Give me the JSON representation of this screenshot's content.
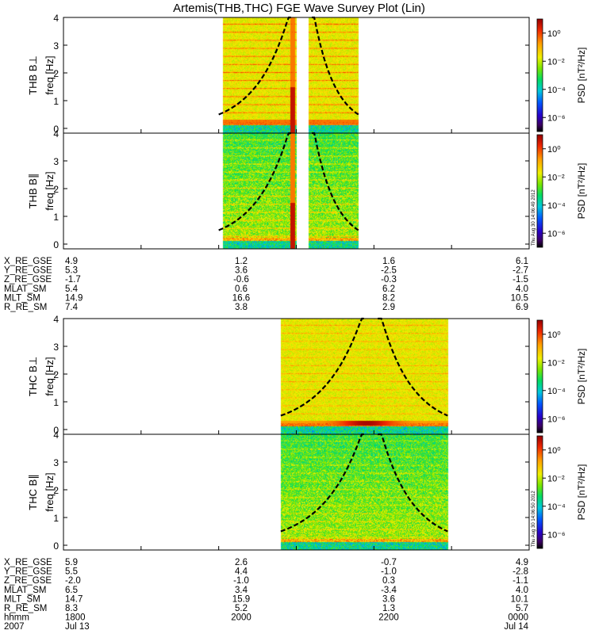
{
  "title": "Artemis(THB,THC) FGE Wave Survey Plot (Lin)",
  "colors": {
    "background": "#ffffff",
    "frame": "#000000",
    "curve": "#000000"
  },
  "colorbar": {
    "label": "PSD [nT²/Hz]",
    "tick_labels": [
      "10⁰",
      "10⁻²",
      "10⁻⁴",
      "10⁻⁶"
    ],
    "tick_exponents": [
      0,
      -2,
      -4,
      -6
    ],
    "exponent_range": [
      -7,
      1
    ],
    "stamps": [
      "Thu Aug 30 14:06:49 2012",
      "Thu Aug 30 14:06:50 2012"
    ]
  },
  "freq_ticks": [
    "0",
    "1",
    "2",
    "3",
    "4"
  ],
  "ephemeris": [
    {
      "rows": [
        {
          "label": "X_RE_GSE",
          "values": [
            "4.9",
            "1.2",
            "1.6",
            "6.1"
          ]
        },
        {
          "label": "Y_RE_GSE",
          "values": [
            "5.3",
            "3.6",
            "-2.5",
            "-2.7"
          ]
        },
        {
          "label": "Z_RE_GSE",
          "values": [
            "-1.7",
            "-0.6",
            "-0.3",
            "-1.5"
          ]
        },
        {
          "label": "MLAT_SM",
          "values": [
            "5.4",
            "0.6",
            "6.2",
            "4.0"
          ]
        },
        {
          "label": "MLT_SM",
          "values": [
            "14.9",
            "16.6",
            "8.2",
            "10.5"
          ]
        },
        {
          "label": "R_RE_SM",
          "values": [
            "7.4",
            "3.8",
            "2.9",
            "6.9"
          ]
        }
      ]
    },
    {
      "rows": [
        {
          "label": "X_RE_GSE",
          "values": [
            "5.9",
            "2.6",
            "-0.7",
            "4.9"
          ]
        },
        {
          "label": "Y_RE_GSE",
          "values": [
            "5.5",
            "4.4",
            "-1.0",
            "-2.8"
          ]
        },
        {
          "label": "Z_RE_GSE",
          "values": [
            "-2.0",
            "-1.0",
            "0.3",
            "-1.1"
          ]
        },
        {
          "label": "MLAT_SM",
          "values": [
            "6.5",
            "3.4",
            "-3.4",
            "4.0"
          ]
        },
        {
          "label": "MLT_SM",
          "values": [
            "14.7",
            "15.9",
            "3.6",
            "10.1"
          ]
        },
        {
          "label": "R_RE_SM",
          "values": [
            "8.3",
            "5.2",
            "1.3",
            "5.7"
          ]
        },
        {
          "label": "hhmm",
          "values": [
            "1800",
            "2000",
            "2200",
            "0000"
          ]
        },
        {
          "label": "2007",
          "values": [
            "Jul 13",
            "",
            "",
            "Jul 14"
          ]
        }
      ]
    }
  ],
  "chart_data": {
    "type": "heatmap",
    "title": "Artemis(THB,THC) FGE Wave Survey Plot (Lin)",
    "x_range_hours": [
      18,
      24
    ],
    "time_ticks": [
      "1800",
      "2000",
      "2200",
      "0000"
    ],
    "date_labels": [
      "Jul 13",
      "Jul 14"
    ],
    "ylim_hz": [
      0,
      4
    ],
    "y_ticks_hz": [
      0,
      1,
      2,
      3,
      4
    ],
    "ylabel": "freq [Hz]",
    "colorbar_label": "PSD [nT²/Hz]",
    "panels": [
      {
        "name": "THB B⊥",
        "probe": "THB",
        "component": "perp",
        "data_spans_hours": [
          [
            20.05,
            21.0
          ],
          [
            21.15,
            21.8
          ]
        ],
        "spike_hour": 20.95,
        "gap_hours": [
          21.0,
          21.15
        ],
        "curve_hours": [
          [
            20.0,
            20.95
          ],
          [
            21.2,
            21.8
          ]
        ]
      },
      {
        "name": "THB B∥",
        "probe": "THB",
        "component": "par",
        "data_spans_hours": [
          [
            20.05,
            21.0
          ],
          [
            21.15,
            21.8
          ]
        ],
        "spike_hour": 20.95,
        "gap_hours": [
          21.0,
          21.15
        ],
        "curve_hours": [
          [
            20.0,
            20.95
          ],
          [
            21.2,
            21.8
          ]
        ]
      },
      {
        "name": "THC B⊥",
        "probe": "THC",
        "component": "perp",
        "data_spans_hours": [
          [
            20.8,
            22.95
          ]
        ],
        "spike_hour": null,
        "gap_hours": null,
        "curve_hours": [
          [
            20.8,
            21.9
          ],
          [
            22.05,
            22.95
          ]
        ]
      },
      {
        "name": "THC B∥",
        "probe": "THC",
        "component": "par",
        "data_spans_hours": [
          [
            20.8,
            22.95
          ]
        ],
        "spike_hour": null,
        "gap_hours": null,
        "curve_hours": [
          [
            20.8,
            21.9
          ],
          [
            22.05,
            22.95
          ]
        ]
      }
    ]
  }
}
